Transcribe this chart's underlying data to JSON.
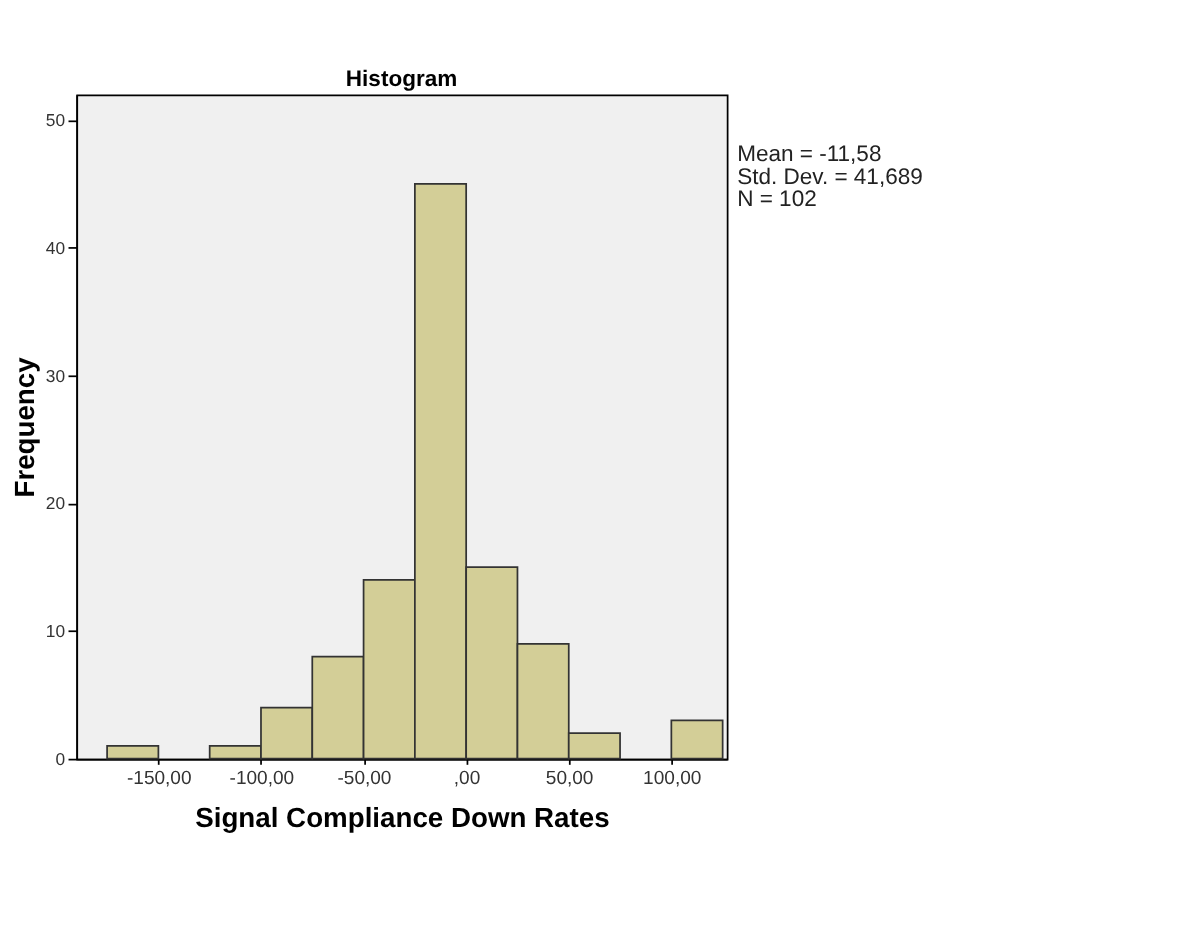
{
  "chart_data": {
    "type": "histogram",
    "title": "Histogram",
    "xlabel": "Signal Compliance Down Rates",
    "ylabel": "Frequency",
    "bins": [
      -175,
      -150,
      -125,
      -100,
      -75,
      -50,
      -25,
      0,
      25,
      50,
      75,
      100,
      125
    ],
    "values": [
      1,
      0,
      1,
      4,
      8,
      14,
      45,
      15,
      9,
      2,
      0,
      3
    ],
    "color": "#d3ce97",
    "xlim": [
      -190,
      127
    ],
    "xticks": [
      {
        "value": -150,
        "label": "-150,00"
      },
      {
        "value": -100,
        "label": "-100,00"
      },
      {
        "value": -50,
        "label": "-50,00"
      },
      {
        "value": 0,
        "label": ",00"
      },
      {
        "value": 50,
        "label": "50,00"
      },
      {
        "value": 100,
        "label": "100,00"
      }
    ],
    "ylim": [
      0,
      52
    ],
    "yticks": [
      0,
      10,
      20,
      30,
      40,
      50
    ],
    "grid": false,
    "annotations": [
      "Mean = -11,58",
      "Std. Dev. = 41,689",
      "N = 102"
    ]
  }
}
